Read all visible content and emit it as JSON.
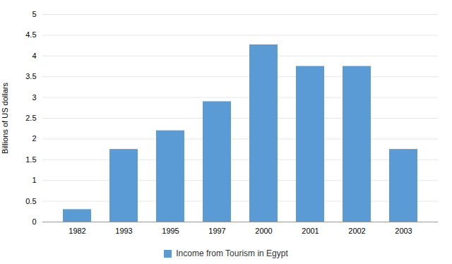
{
  "chart_data": {
    "type": "bar",
    "categories": [
      "1982",
      "1993",
      "1995",
      "1997",
      "2000",
      "2001",
      "2002",
      "2003"
    ],
    "series": [
      {
        "name": "Income from Tourism in Egypt",
        "color": "#5B9BD5",
        "values": [
          0.3,
          1.75,
          2.2,
          2.9,
          4.27,
          3.75,
          3.75,
          1.75
        ]
      }
    ],
    "ylabel": "Billions of US dollars",
    "ylim": [
      0,
      5
    ],
    "yticks": [
      0,
      0.5,
      1,
      1.5,
      2,
      2.5,
      3,
      3.5,
      4,
      4.5,
      5
    ],
    "grid": true,
    "legend": "bottom"
  }
}
